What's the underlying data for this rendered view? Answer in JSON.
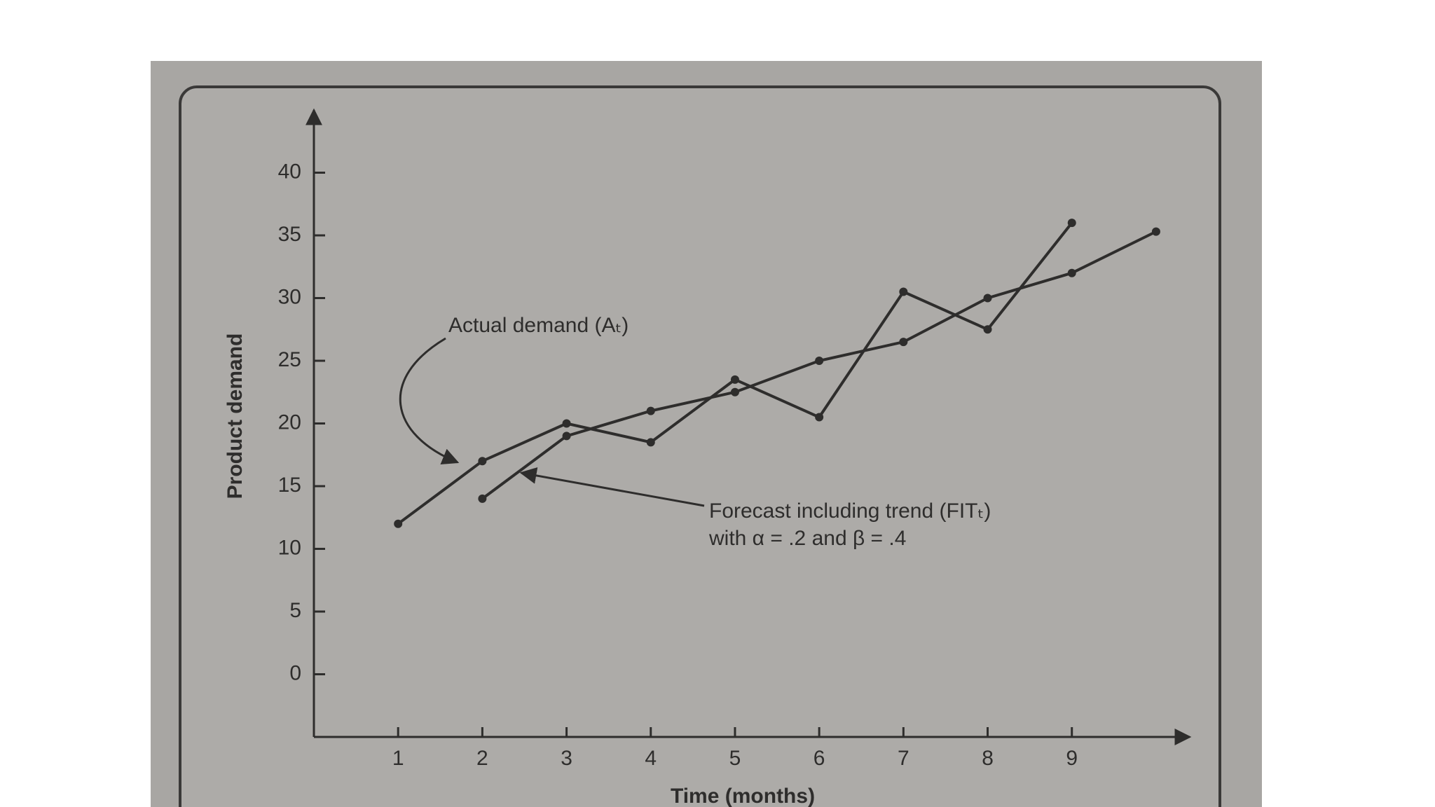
{
  "chart_data": {
    "type": "line",
    "x": [
      1,
      2,
      3,
      4,
      5,
      6,
      7,
      8,
      9,
      10
    ],
    "series": [
      {
        "name": "Actual demand (Aₜ)",
        "color": "#2e2d2c",
        "values": [
          12,
          17,
          20,
          18.5,
          23.5,
          20.5,
          30.5,
          27.5,
          36,
          null
        ]
      },
      {
        "name": "Forecast including trend (FITₜ)",
        "color": "#2e2d2c",
        "values": [
          null,
          14,
          19,
          21,
          22.5,
          25,
          26.5,
          30,
          32,
          35.3
        ]
      }
    ],
    "annotations": [
      "with α = .2 and β = .4"
    ],
    "y_label": "Product demand",
    "x_label": "Time (months)",
    "xlim": [
      0,
      10.4
    ],
    "xticks": [
      1,
      2,
      3,
      4,
      5,
      6,
      7,
      8,
      9
    ],
    "ylim": [
      -5,
      45
    ],
    "yticks": [
      0,
      5,
      10,
      15,
      20,
      25,
      30,
      35,
      40
    ],
    "grid": false
  }
}
